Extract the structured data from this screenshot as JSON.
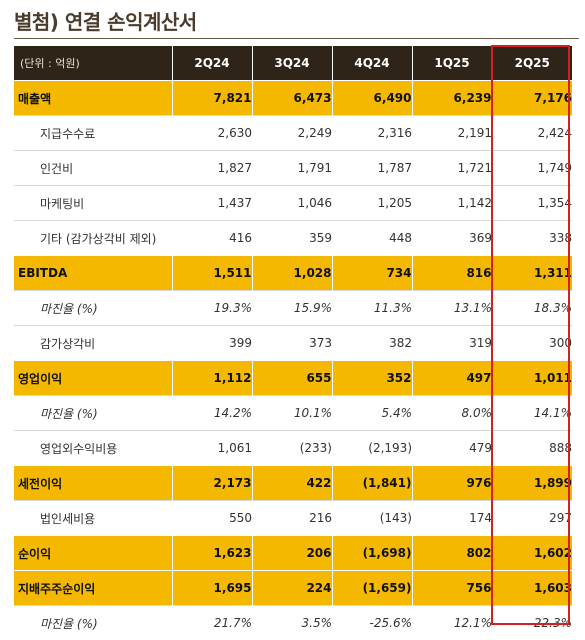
{
  "title": "별첨) 연결 손익계산서",
  "header": {
    "unit": "(단위 : 억원)",
    "periods": [
      "2Q24",
      "3Q24",
      "4Q24",
      "1Q25",
      "2Q25"
    ]
  },
  "rows": [
    {
      "label": "매출액",
      "values": [
        "7,821",
        "6,473",
        "6,490",
        "6,239",
        "7,176"
      ]
    },
    {
      "label": "지급수수료",
      "values": [
        "2,630",
        "2,249",
        "2,316",
        "2,191",
        "2,424"
      ]
    },
    {
      "label": "인건비",
      "values": [
        "1,827",
        "1,791",
        "1,787",
        "1,721",
        "1,749"
      ]
    },
    {
      "label": "마케팅비",
      "values": [
        "1,437",
        "1,046",
        "1,205",
        "1,142",
        "1,354"
      ]
    },
    {
      "label": "기타 (감가상각비 제외)",
      "values": [
        "416",
        "359",
        "448",
        "369",
        "338"
      ]
    },
    {
      "label": "EBITDA",
      "values": [
        "1,511",
        "1,028",
        "734",
        "816",
        "1,311"
      ]
    },
    {
      "label": "마진율 (%)",
      "values": [
        "19.3%",
        "15.9%",
        "11.3%",
        "13.1%",
        "18.3%"
      ]
    },
    {
      "label": "감가상각비",
      "values": [
        "399",
        "373",
        "382",
        "319",
        "300"
      ]
    },
    {
      "label": "영업이익",
      "values": [
        "1,112",
        "655",
        "352",
        "497",
        "1,011"
      ]
    },
    {
      "label": "마진율 (%)",
      "values": [
        "14.2%",
        "10.1%",
        "5.4%",
        "8.0%",
        "14.1%"
      ]
    },
    {
      "label": "영업외수익비용",
      "values": [
        "1,061",
        "(233)",
        "(2,193)",
        "479",
        "888"
      ]
    },
    {
      "label": "세전이익",
      "values": [
        "2,173",
        "422",
        "(1,841)",
        "976",
        "1,899"
      ]
    },
    {
      "label": "법인세비용",
      "values": [
        "550",
        "216",
        "(143)",
        "174",
        "297"
      ]
    },
    {
      "label": "순이익",
      "values": [
        "1,623",
        "206",
        "(1,698)",
        "802",
        "1,602"
      ]
    },
    {
      "label": "지배주주순이익",
      "values": [
        "1,695",
        "224",
        "(1,659)",
        "756",
        "1,603"
      ]
    },
    {
      "label": "마진율 (%)",
      "values": [
        "21.7%",
        "3.5%",
        "-25.6%",
        "12.1%",
        "22.3%"
      ]
    }
  ],
  "colors": {
    "header_bg": "#2e2418",
    "highlight_row": "#f5b800",
    "negative_text": "#d03030",
    "emphasis_box": "#d42020"
  }
}
